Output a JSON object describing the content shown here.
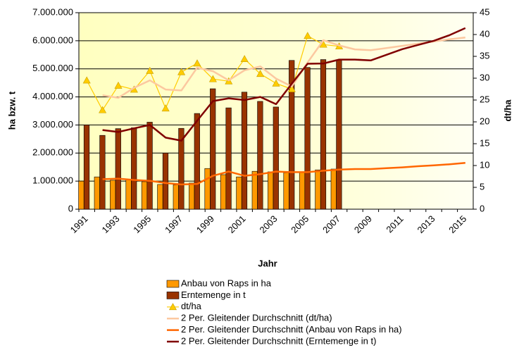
{
  "chart_data": {
    "type": "bar",
    "categories": [
      "1991",
      null,
      "1993",
      null,
      "1995",
      null,
      "1997",
      null,
      "1999",
      null,
      "2001",
      null,
      "2003",
      null,
      "2005",
      null,
      "2007",
      null,
      "2009",
      null,
      "2011",
      null,
      "2013",
      null,
      "2015"
    ],
    "x_label": "Jahr",
    "y_label": "ha bzw. t",
    "y2_label": "dt/ha",
    "ylim": [
      0,
      7000000
    ],
    "yticks": [
      0,
      {
        "value": 1000000,
        "label": "1.000.000"
      },
      {
        "value": 2000000,
        "label": "2.000.000"
      },
      {
        "value": 3000000,
        "label": "3.000.000"
      },
      {
        "value": 4000000,
        "label": "4.000.000"
      },
      {
        "value": 5000000,
        "label": "5.000.000"
      },
      {
        "value": 6000000,
        "label": "6.000.000"
      },
      {
        "value": 7000000,
        "label": "7.000.000"
      }
    ],
    "y2lim": [
      0,
      45
    ],
    "y2ticks": [
      0,
      5,
      10,
      15,
      20,
      25,
      30,
      35,
      40,
      45
    ],
    "grid": true,
    "legend": "bottom",
    "series": [
      {
        "name": "Anbau von Raps in ha",
        "type": "bar",
        "color": "#ff9900",
        "axis": "y",
        "values": [
          1000000,
          1150000,
          1030000,
          1050000,
          980000,
          880000,
          870000,
          930000,
          1450000,
          1230000,
          1150000,
          1350000,
          1330000,
          1300000,
          1330000,
          1400000,
          1430000,
          null,
          null,
          null,
          null,
          null,
          null,
          null,
          null
        ]
      },
      {
        "name": "Erntemenge in t",
        "type": "bar",
        "color": "#993300",
        "axis": "y",
        "values": [
          3000000,
          2630000,
          2870000,
          2900000,
          3100000,
          2000000,
          2880000,
          3410000,
          4290000,
          3610000,
          4170000,
          3840000,
          3640000,
          5300000,
          5050000,
          5330000,
          5320000,
          null,
          null,
          null,
          null,
          null,
          null,
          null,
          null
        ]
      },
      {
        "name": "dt/ha",
        "type": "line",
        "marker": "triangle",
        "color": "#ffcc00",
        "axis": "y2",
        "values": [
          29.5,
          22.7,
          28.3,
          27.4,
          31.7,
          23.1,
          31.4,
          33.4,
          29.8,
          29.3,
          34.4,
          31.0,
          28.8,
          27.5,
          39.7,
          37.7,
          37.3,
          null,
          null,
          null,
          null,
          null,
          null,
          null,
          null
        ]
      },
      {
        "name": "2 Per. Gleitender Durchschnitt (dt/ha)",
        "type": "line",
        "color": "#fcc8a0",
        "axis": "y2",
        "values": [
          null,
          26.1,
          25.5,
          27.8,
          29.5,
          27.4,
          27.2,
          32.4,
          31.6,
          29.5,
          31.8,
          32.7,
          29.9,
          28.1,
          33.6,
          38.7,
          37.5,
          36.6,
          36.4,
          36.9,
          37.4,
          37.9,
          38.4,
          38.9,
          39.3
        ]
      },
      {
        "name": "2 Per. Gleitender Durchschnitt (Anbau von Raps in ha)",
        "type": "line",
        "color": "#ff6600",
        "axis": "y",
        "values": [
          null,
          1070000,
          1090000,
          1040000,
          1010000,
          930000,
          880000,
          900000,
          1190000,
          1340000,
          1190000,
          1250000,
          1340000,
          1320000,
          1320000,
          1370000,
          1410000,
          1430000,
          1430000,
          1460000,
          1490000,
          1530000,
          1560000,
          1600000,
          1650000
        ]
      },
      {
        "name": "2 Per. Gleitender Durchschnitt (Erntemenge in t)",
        "type": "line",
        "color": "#800000",
        "axis": "y",
        "values": [
          null,
          2820000,
          2750000,
          2880000,
          3000000,
          2550000,
          2440000,
          3150000,
          3850000,
          3950000,
          3890000,
          4000000,
          3740000,
          4470000,
          5180000,
          5190000,
          5330000,
          5330000,
          5300000,
          5500000,
          5700000,
          5850000,
          6000000,
          6200000,
          6450000
        ]
      }
    ]
  }
}
